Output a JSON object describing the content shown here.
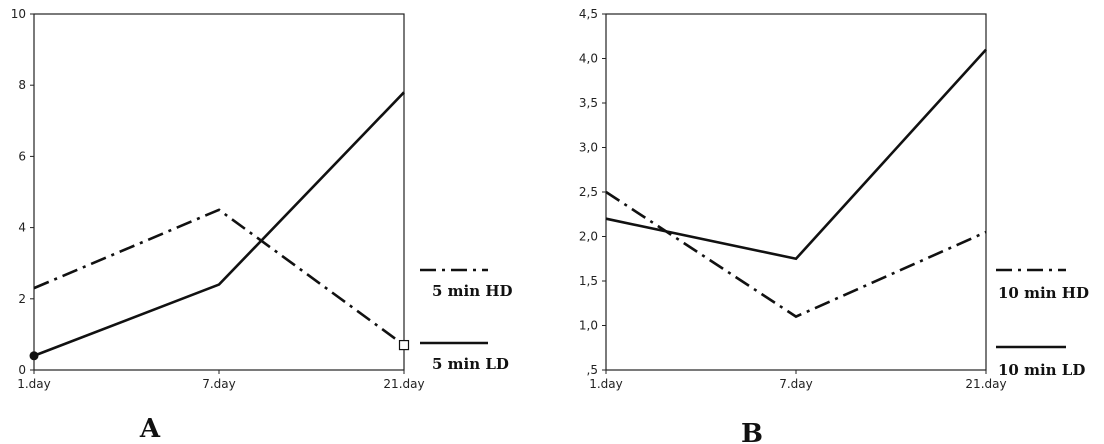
{
  "chart_data": [
    {
      "type": "line",
      "panel_label": "A",
      "categories": [
        "1.day",
        "7.day",
        "21.day"
      ],
      "ylim": [
        0,
        10
      ],
      "yticks": [
        "0",
        "2",
        "4",
        "6",
        "8",
        "10"
      ],
      "grid": false,
      "legend_placement": "right",
      "series": [
        {
          "name": "5 min HD",
          "style": "dashdot",
          "values": [
            2.3,
            4.5,
            0.7
          ]
        },
        {
          "name": "5 min LD",
          "style": "solid",
          "values": [
            0.4,
            2.4,
            7.8
          ]
        }
      ]
    },
    {
      "type": "line",
      "panel_label": "B",
      "categories": [
        "1.day",
        "7.day",
        "21.day"
      ],
      "ylim": [
        0.5,
        4.5
      ],
      "yticks": [
        ",5",
        "1,0",
        "1,5",
        "2,0",
        "2,5",
        "3,0",
        "3,5",
        "4,0",
        "4,5"
      ],
      "grid": false,
      "legend_placement": "right",
      "series": [
        {
          "name": "10 min HD",
          "style": "dashdot",
          "values": [
            2.5,
            1.1,
            2.05
          ]
        },
        {
          "name": "10 min LD",
          "style": "solid",
          "values": [
            2.2,
            1.75,
            4.1
          ]
        }
      ]
    }
  ],
  "colors": {
    "line": "#111111",
    "axis": "#222222"
  }
}
